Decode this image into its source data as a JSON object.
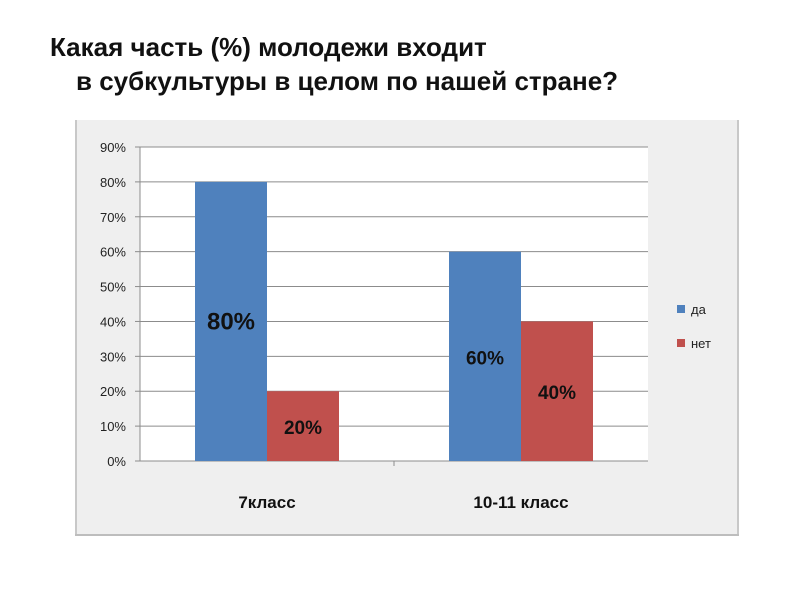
{
  "slide": {
    "title_line1": "Какая часть (%) молодежи входит",
    "title_line2": "в субкультуры в целом  по нашей стране?"
  },
  "chart_data": {
    "type": "bar",
    "categories": [
      "7класс",
      "10-11 класс"
    ],
    "series": [
      {
        "name": "да",
        "color": "#4f81bd",
        "values": [
          80,
          60
        ],
        "labels": [
          "80%",
          "60%"
        ]
      },
      {
        "name": "нет",
        "color": "#c0504d",
        "values": [
          20,
          40
        ],
        "labels": [
          "20%",
          "40%"
        ]
      }
    ],
    "y_ticks": [
      "0%",
      "10%",
      "20%",
      "30%",
      "40%",
      "50%",
      "60%",
      "70%",
      "80%",
      "90%"
    ],
    "ylim": [
      0,
      90
    ],
    "y_unit": "%",
    "grid": true,
    "legend_position": "right"
  }
}
